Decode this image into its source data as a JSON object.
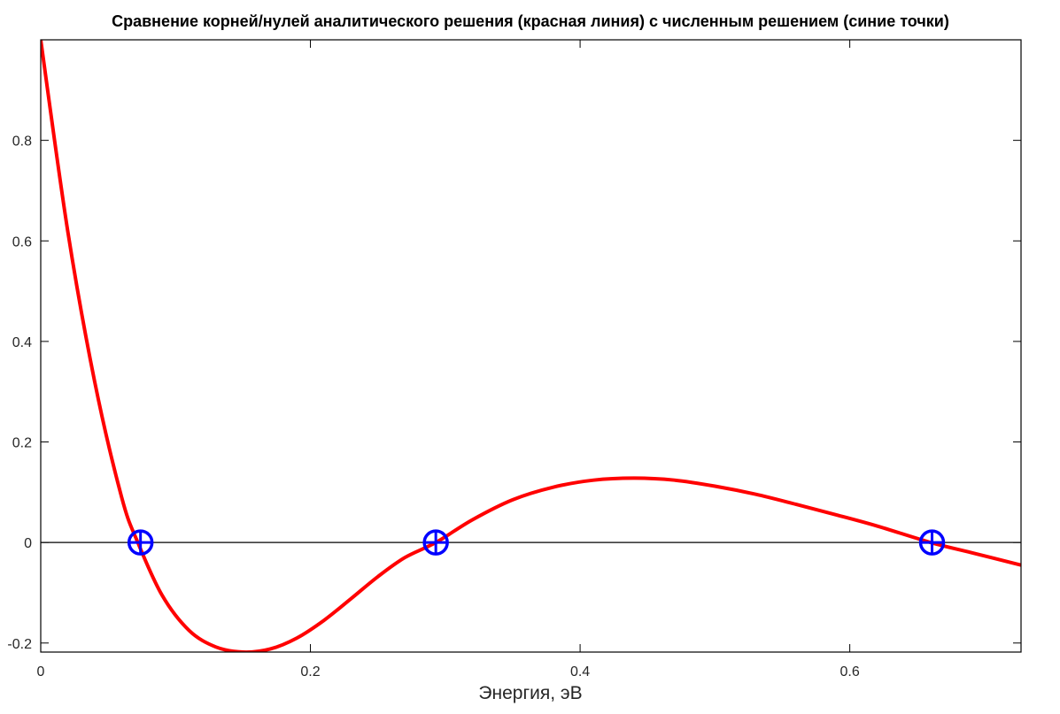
{
  "chart_data": {
    "type": "line",
    "title": "Сравнение корней/нулей аналитического решения (красная линия) с численным решением (синие точки)",
    "xlabel": "Энергия, эВ",
    "ylabel": "",
    "xlim": [
      0,
      0.727
    ],
    "ylim": [
      -0.218,
      1.0
    ],
    "grid": false,
    "x_ticks": [
      {
        "value": 0,
        "label": "0"
      },
      {
        "value": 0.2,
        "label": "0.2"
      },
      {
        "value": 0.4,
        "label": "0.4"
      },
      {
        "value": 0.6,
        "label": "0.6"
      }
    ],
    "y_ticks": [
      {
        "value": -0.2,
        "label": "-0.2"
      },
      {
        "value": 0,
        "label": "0"
      },
      {
        "value": 0.2,
        "label": "0.2"
      },
      {
        "value": 0.4,
        "label": "0.4"
      },
      {
        "value": 0.6,
        "label": "0.6"
      },
      {
        "value": 0.8,
        "label": "0.8"
      }
    ],
    "reference_line": {
      "y": 0,
      "color": "#000000"
    },
    "series": [
      {
        "kind": "line",
        "color": "#ff0000",
        "x": [
          0,
          0.02,
          0.04,
          0.06,
          0.072,
          0.09,
          0.11,
          0.13,
          0.15,
          0.17,
          0.19,
          0.21,
          0.23,
          0.25,
          0.27,
          0.293,
          0.32,
          0.35,
          0.38,
          0.41,
          0.44,
          0.47,
          0.5,
          0.53,
          0.56,
          0.59,
          0.62,
          0.66,
          0.69,
          0.727
        ],
        "y": [
          1.0,
          0.62,
          0.32,
          0.09,
          0.0,
          -0.105,
          -0.175,
          -0.208,
          -0.218,
          -0.212,
          -0.19,
          -0.155,
          -0.112,
          -0.068,
          -0.03,
          0.0,
          0.045,
          0.085,
          0.11,
          0.124,
          0.128,
          0.124,
          0.112,
          0.096,
          0.076,
          0.055,
          0.033,
          0.0,
          -0.02,
          -0.045
        ]
      },
      {
        "kind": "markers",
        "marker": "circle-plus",
        "color": "#0000ff",
        "x": [
          0.074,
          0.293,
          0.661
        ],
        "y": [
          0,
          0,
          0
        ]
      }
    ]
  }
}
